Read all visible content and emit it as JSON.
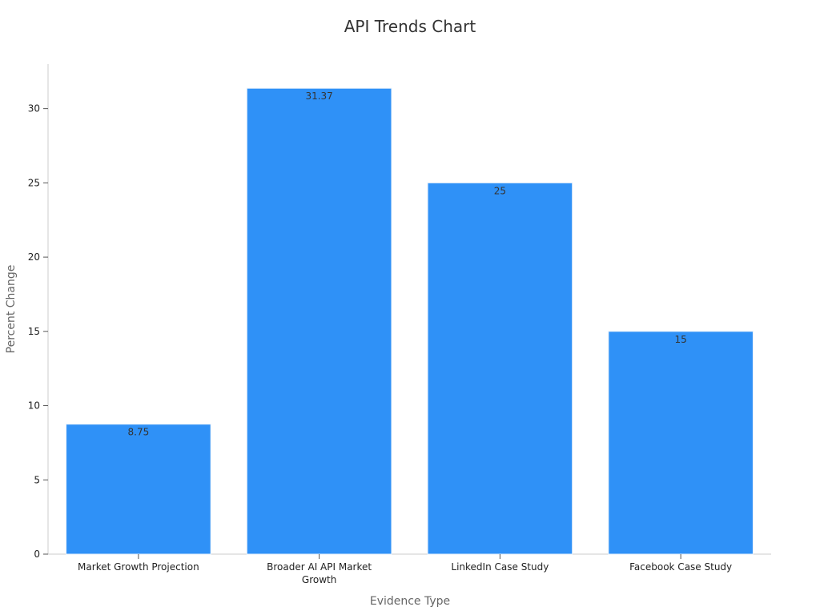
{
  "chart_data": {
    "type": "bar",
    "title": "API Trends Chart",
    "xlabel": "Evidence Type",
    "ylabel": "Percent Change",
    "categories": [
      [
        "Market Growth Projection"
      ],
      [
        "Broader AI API Market",
        "Growth"
      ],
      [
        "LinkedIn Case Study"
      ],
      [
        "Facebook Case Study"
      ]
    ],
    "values": [
      8.75,
      31.37,
      25,
      15
    ],
    "value_labels": [
      "8.75",
      "31.37",
      "25",
      "15"
    ],
    "ylim": [
      0,
      33
    ],
    "yticks": [
      0,
      5,
      10,
      15,
      20,
      25,
      30
    ],
    "grid": false,
    "legend": "none",
    "colors": {
      "bar": "#2f91f7",
      "axis": "#cccccc"
    }
  }
}
